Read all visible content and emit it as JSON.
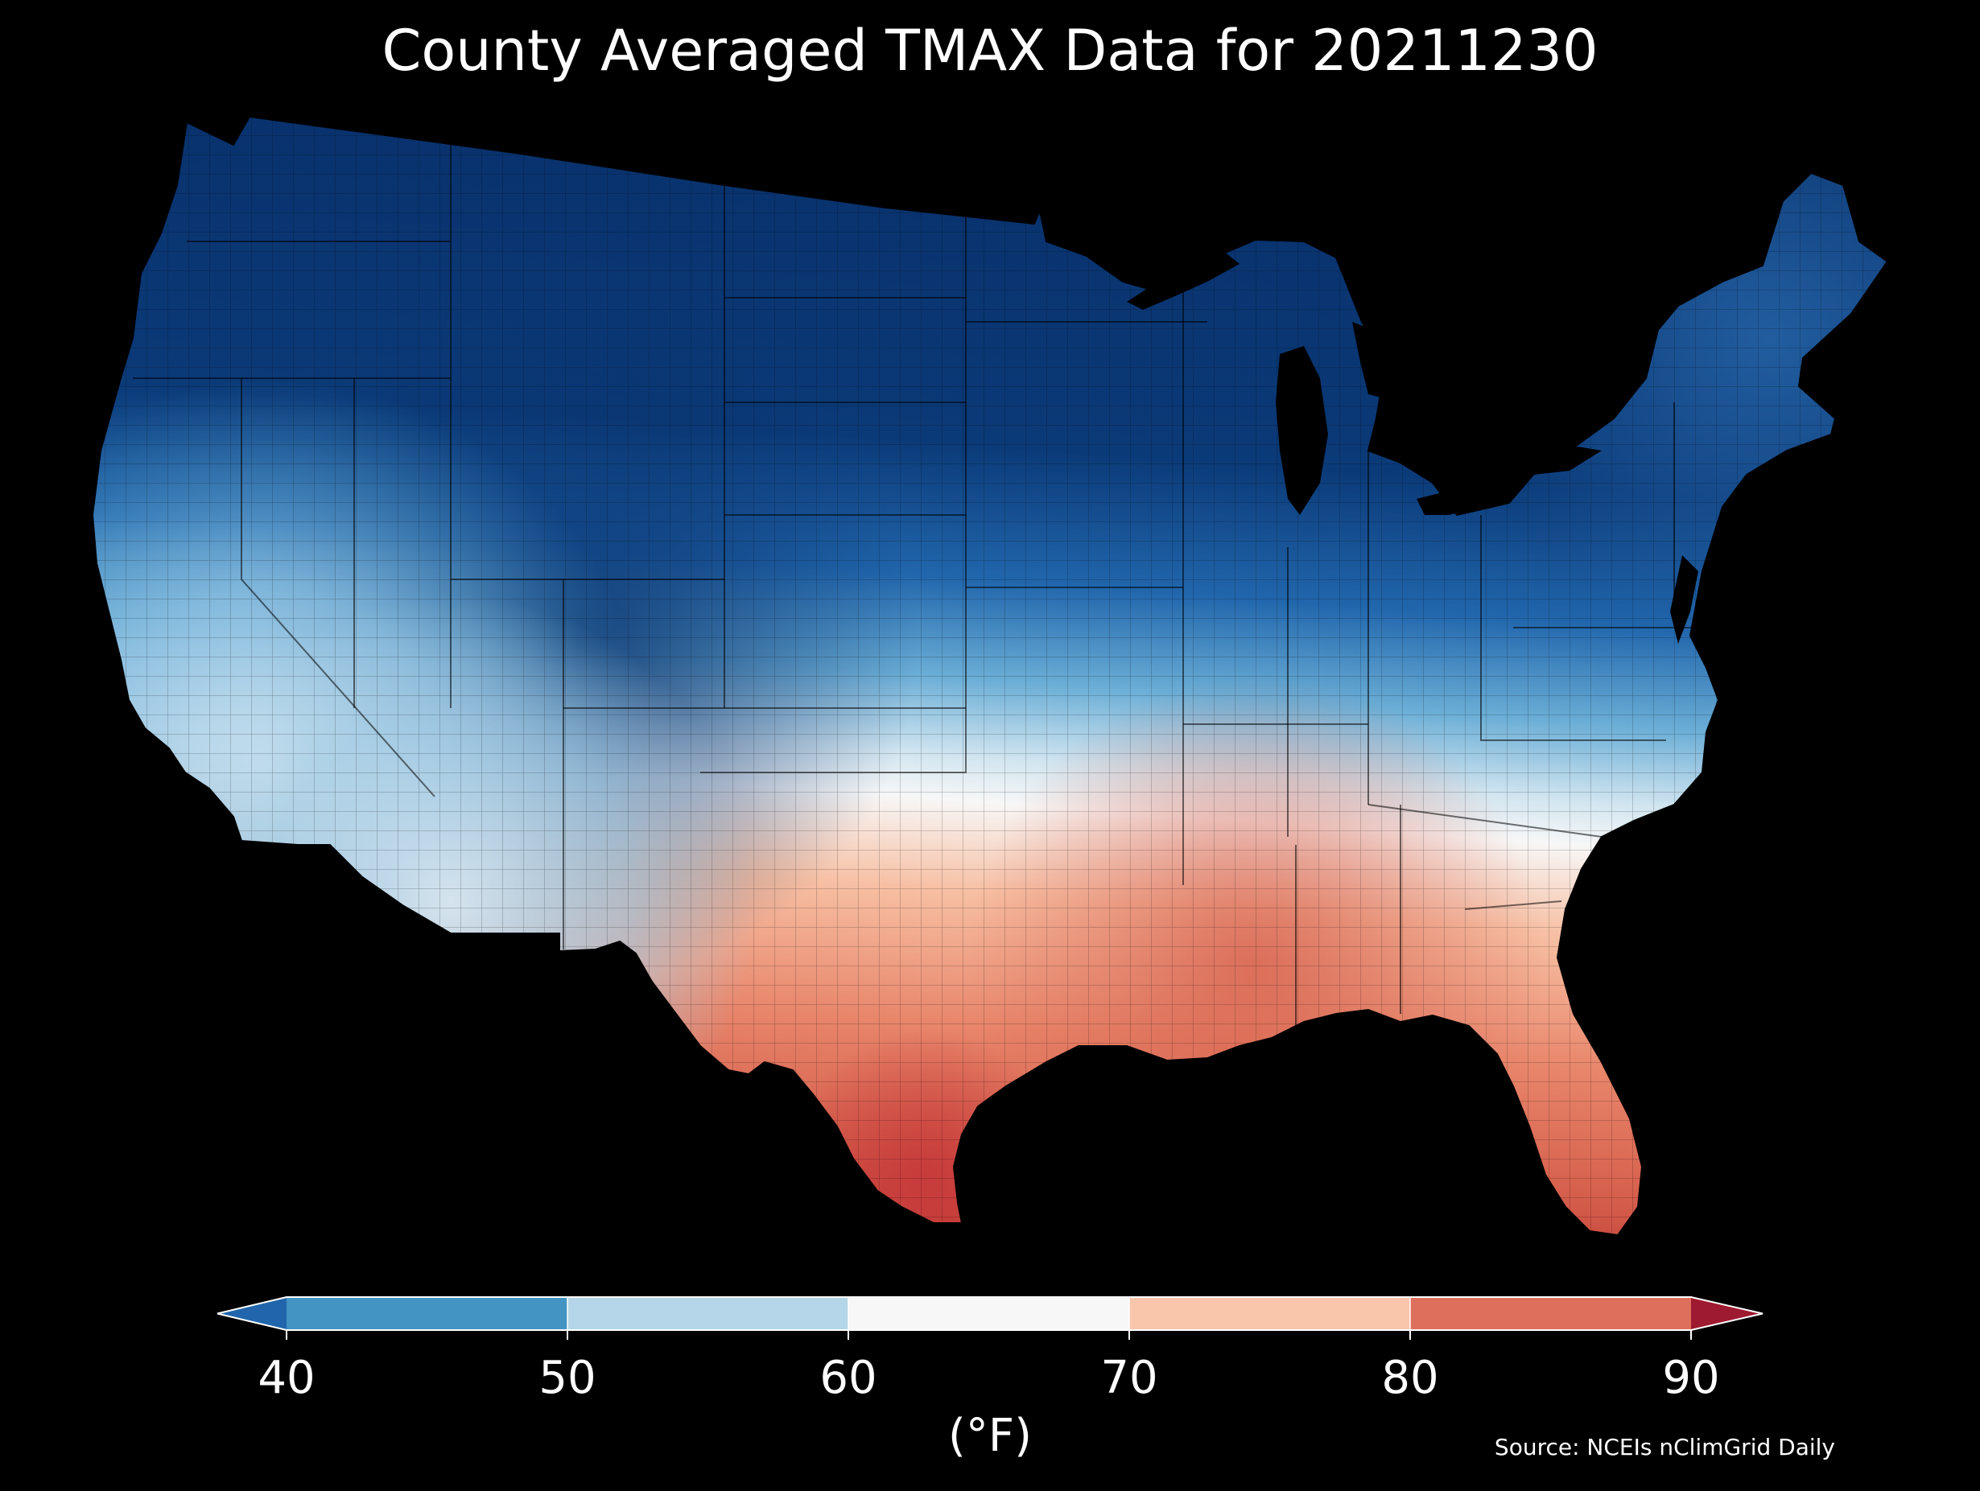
{
  "title": "County Averaged TMAX Data for 20211230",
  "source": "Source: NCEIs nClimGrid Daily",
  "colorbar": {
    "label": "(°F)",
    "ticks": [
      "40",
      "50",
      "60",
      "70",
      "80",
      "90"
    ],
    "bins": [
      {
        "range": "<40",
        "color": "#2166ac"
      },
      {
        "range": "40-50",
        "color": "#4393c3"
      },
      {
        "range": "50-60",
        "color": "#b4d6e8"
      },
      {
        "range": "60-70",
        "color": "#f7f7f7"
      },
      {
        "range": "70-80",
        "color": "#f9c5ab"
      },
      {
        "range": "80-90",
        "color": "#dd6f5c"
      },
      {
        "range": ">90",
        "color": "#9e1a30"
      }
    ]
  },
  "map": {
    "region": "Contiguous United States",
    "unit": "county",
    "background_color": "#000000"
  }
}
